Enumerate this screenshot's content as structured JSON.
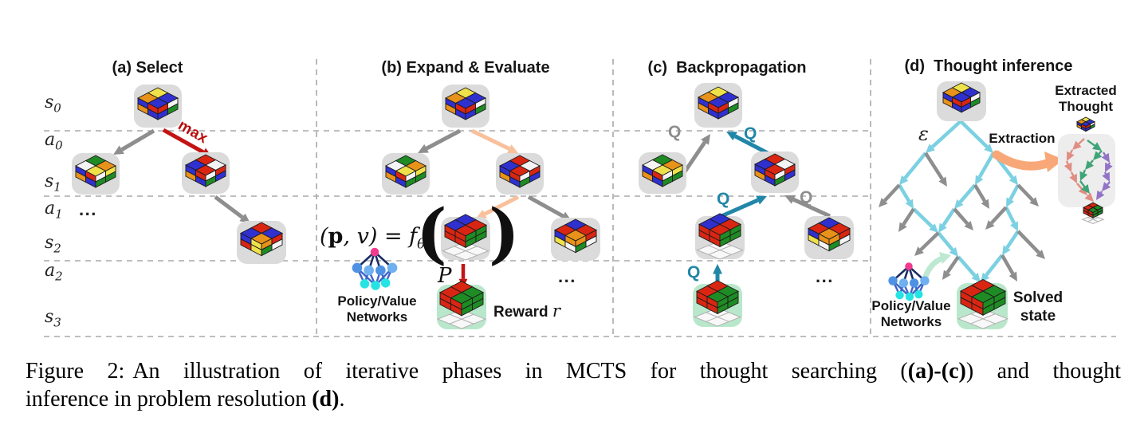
{
  "figure": {
    "rows": [
      {
        "base": "s",
        "sub": "0"
      },
      {
        "base": "a",
        "sub": "0"
      },
      {
        "base": "s",
        "sub": "1"
      },
      {
        "base": "a",
        "sub": "1"
      },
      {
        "base": "s",
        "sub": "2"
      },
      {
        "base": "a",
        "sub": "2"
      },
      {
        "base": "s",
        "sub": "3"
      }
    ],
    "panel_a": {
      "title": "(a) Select",
      "max_label": "max",
      "ellipsis": "..."
    },
    "panel_b": {
      "title": "(b) Expand & Evaluate",
      "formula": {
        "open": "(",
        "p": "p",
        "mid": ", v) = f",
        "sub": "θ",
        "lparen": "(",
        "rparen": ")"
      },
      "p_label": "P",
      "reward_label": "Reward ",
      "reward_var": "r",
      "network_label_line1": "Policy/Value",
      "network_label_line2": "Networks",
      "ellipsis": "..."
    },
    "panel_c": {
      "title": "(c)  Backpropagation",
      "q_label": "Q",
      "ellipsis": "..."
    },
    "panel_d": {
      "title": "(d)  Thought inference",
      "epsilon": "ε",
      "extraction_label": "Extraction",
      "extracted_line1": "Extracted",
      "extracted_line2": "Thought",
      "network_label_line1": "Policy/Value",
      "network_label_line2": "Networks",
      "solved_line1": "Solved",
      "solved_line2": "state"
    }
  },
  "caption": {
    "lead": "Figure 2:",
    "seg1": "An illustration of iterative phases in MCTS for thought searching (",
    "bold1": "(a)-(c)",
    "seg2": ") and thought",
    "seg3": "inference in problem resolution ",
    "bold2": "(d)",
    "seg4": "."
  },
  "colors": {
    "arrow_gray": "#8e8e8e",
    "arrow_red": "#c31414",
    "arrow_teal": "#2187a8",
    "arrow_cyan": "#7bd0e2",
    "arrow_peach": "#f9c09c",
    "extraction_orange": "#f8a878",
    "mint": "#bde8d2",
    "node_bg": "#dbdbdb",
    "green_bg": "#b9e7cb",
    "extract_bg": "#ededed",
    "salmon": "#e08d84",
    "path_green": "#3fa477",
    "path_purple": "#9273c8",
    "dash": "#a9a9a9",
    "nn_pink": "#f23a8f",
    "nn_blue": "#4f92e3",
    "nn_blue2": "#6fb0ef",
    "nn_cyan": "#25e3e3",
    "nn_edge_dark": "#1c2c63",
    "nn_edge_mid": "#3e64c8",
    "cube_red": "#d92613",
    "cube_blue": "#3030cf",
    "cube_green": "#1f8b24",
    "cube_orange": "#e8921a",
    "cube_yellow": "#efe14a",
    "cube_white": "#f4f4f4"
  }
}
